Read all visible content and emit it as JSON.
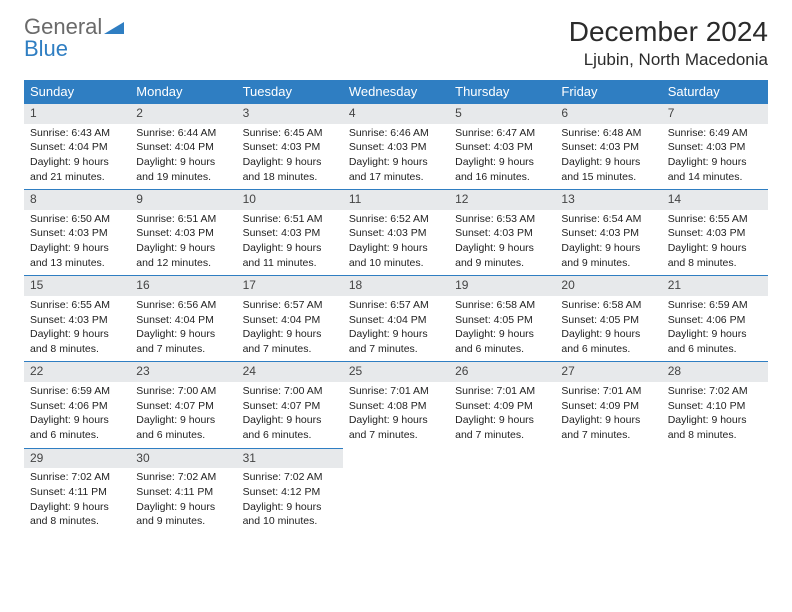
{
  "brand": {
    "word1": "General",
    "word2": "Blue"
  },
  "title": "December 2024",
  "location": "Ljubin, North Macedonia",
  "accent_color": "#2f7ec2",
  "header_bg": "#2f7ec2",
  "daynum_bg": "#e7e9eb",
  "weekdays": [
    "Sunday",
    "Monday",
    "Tuesday",
    "Wednesday",
    "Thursday",
    "Friday",
    "Saturday"
  ],
  "weeks": [
    [
      {
        "n": "1",
        "sr": "Sunrise: 6:43 AM",
        "ss": "Sunset: 4:04 PM",
        "d1": "Daylight: 9 hours",
        "d2": "and 21 minutes."
      },
      {
        "n": "2",
        "sr": "Sunrise: 6:44 AM",
        "ss": "Sunset: 4:04 PM",
        "d1": "Daylight: 9 hours",
        "d2": "and 19 minutes."
      },
      {
        "n": "3",
        "sr": "Sunrise: 6:45 AM",
        "ss": "Sunset: 4:03 PM",
        "d1": "Daylight: 9 hours",
        "d2": "and 18 minutes."
      },
      {
        "n": "4",
        "sr": "Sunrise: 6:46 AM",
        "ss": "Sunset: 4:03 PM",
        "d1": "Daylight: 9 hours",
        "d2": "and 17 minutes."
      },
      {
        "n": "5",
        "sr": "Sunrise: 6:47 AM",
        "ss": "Sunset: 4:03 PM",
        "d1": "Daylight: 9 hours",
        "d2": "and 16 minutes."
      },
      {
        "n": "6",
        "sr": "Sunrise: 6:48 AM",
        "ss": "Sunset: 4:03 PM",
        "d1": "Daylight: 9 hours",
        "d2": "and 15 minutes."
      },
      {
        "n": "7",
        "sr": "Sunrise: 6:49 AM",
        "ss": "Sunset: 4:03 PM",
        "d1": "Daylight: 9 hours",
        "d2": "and 14 minutes."
      }
    ],
    [
      {
        "n": "8",
        "sr": "Sunrise: 6:50 AM",
        "ss": "Sunset: 4:03 PM",
        "d1": "Daylight: 9 hours",
        "d2": "and 13 minutes."
      },
      {
        "n": "9",
        "sr": "Sunrise: 6:51 AM",
        "ss": "Sunset: 4:03 PM",
        "d1": "Daylight: 9 hours",
        "d2": "and 12 minutes."
      },
      {
        "n": "10",
        "sr": "Sunrise: 6:51 AM",
        "ss": "Sunset: 4:03 PM",
        "d1": "Daylight: 9 hours",
        "d2": "and 11 minutes."
      },
      {
        "n": "11",
        "sr": "Sunrise: 6:52 AM",
        "ss": "Sunset: 4:03 PM",
        "d1": "Daylight: 9 hours",
        "d2": "and 10 minutes."
      },
      {
        "n": "12",
        "sr": "Sunrise: 6:53 AM",
        "ss": "Sunset: 4:03 PM",
        "d1": "Daylight: 9 hours",
        "d2": "and 9 minutes."
      },
      {
        "n": "13",
        "sr": "Sunrise: 6:54 AM",
        "ss": "Sunset: 4:03 PM",
        "d1": "Daylight: 9 hours",
        "d2": "and 9 minutes."
      },
      {
        "n": "14",
        "sr": "Sunrise: 6:55 AM",
        "ss": "Sunset: 4:03 PM",
        "d1": "Daylight: 9 hours",
        "d2": "and 8 minutes."
      }
    ],
    [
      {
        "n": "15",
        "sr": "Sunrise: 6:55 AM",
        "ss": "Sunset: 4:03 PM",
        "d1": "Daylight: 9 hours",
        "d2": "and 8 minutes."
      },
      {
        "n": "16",
        "sr": "Sunrise: 6:56 AM",
        "ss": "Sunset: 4:04 PM",
        "d1": "Daylight: 9 hours",
        "d2": "and 7 minutes."
      },
      {
        "n": "17",
        "sr": "Sunrise: 6:57 AM",
        "ss": "Sunset: 4:04 PM",
        "d1": "Daylight: 9 hours",
        "d2": "and 7 minutes."
      },
      {
        "n": "18",
        "sr": "Sunrise: 6:57 AM",
        "ss": "Sunset: 4:04 PM",
        "d1": "Daylight: 9 hours",
        "d2": "and 7 minutes."
      },
      {
        "n": "19",
        "sr": "Sunrise: 6:58 AM",
        "ss": "Sunset: 4:05 PM",
        "d1": "Daylight: 9 hours",
        "d2": "and 6 minutes."
      },
      {
        "n": "20",
        "sr": "Sunrise: 6:58 AM",
        "ss": "Sunset: 4:05 PM",
        "d1": "Daylight: 9 hours",
        "d2": "and 6 minutes."
      },
      {
        "n": "21",
        "sr": "Sunrise: 6:59 AM",
        "ss": "Sunset: 4:06 PM",
        "d1": "Daylight: 9 hours",
        "d2": "and 6 minutes."
      }
    ],
    [
      {
        "n": "22",
        "sr": "Sunrise: 6:59 AM",
        "ss": "Sunset: 4:06 PM",
        "d1": "Daylight: 9 hours",
        "d2": "and 6 minutes."
      },
      {
        "n": "23",
        "sr": "Sunrise: 7:00 AM",
        "ss": "Sunset: 4:07 PM",
        "d1": "Daylight: 9 hours",
        "d2": "and 6 minutes."
      },
      {
        "n": "24",
        "sr": "Sunrise: 7:00 AM",
        "ss": "Sunset: 4:07 PM",
        "d1": "Daylight: 9 hours",
        "d2": "and 6 minutes."
      },
      {
        "n": "25",
        "sr": "Sunrise: 7:01 AM",
        "ss": "Sunset: 4:08 PM",
        "d1": "Daylight: 9 hours",
        "d2": "and 7 minutes."
      },
      {
        "n": "26",
        "sr": "Sunrise: 7:01 AM",
        "ss": "Sunset: 4:09 PM",
        "d1": "Daylight: 9 hours",
        "d2": "and 7 minutes."
      },
      {
        "n": "27",
        "sr": "Sunrise: 7:01 AM",
        "ss": "Sunset: 4:09 PM",
        "d1": "Daylight: 9 hours",
        "d2": "and 7 minutes."
      },
      {
        "n": "28",
        "sr": "Sunrise: 7:02 AM",
        "ss": "Sunset: 4:10 PM",
        "d1": "Daylight: 9 hours",
        "d2": "and 8 minutes."
      }
    ],
    [
      {
        "n": "29",
        "sr": "Sunrise: 7:02 AM",
        "ss": "Sunset: 4:11 PM",
        "d1": "Daylight: 9 hours",
        "d2": "and 8 minutes."
      },
      {
        "n": "30",
        "sr": "Sunrise: 7:02 AM",
        "ss": "Sunset: 4:11 PM",
        "d1": "Daylight: 9 hours",
        "d2": "and 9 minutes."
      },
      {
        "n": "31",
        "sr": "Sunrise: 7:02 AM",
        "ss": "Sunset: 4:12 PM",
        "d1": "Daylight: 9 hours",
        "d2": "and 10 minutes."
      },
      null,
      null,
      null,
      null
    ]
  ]
}
